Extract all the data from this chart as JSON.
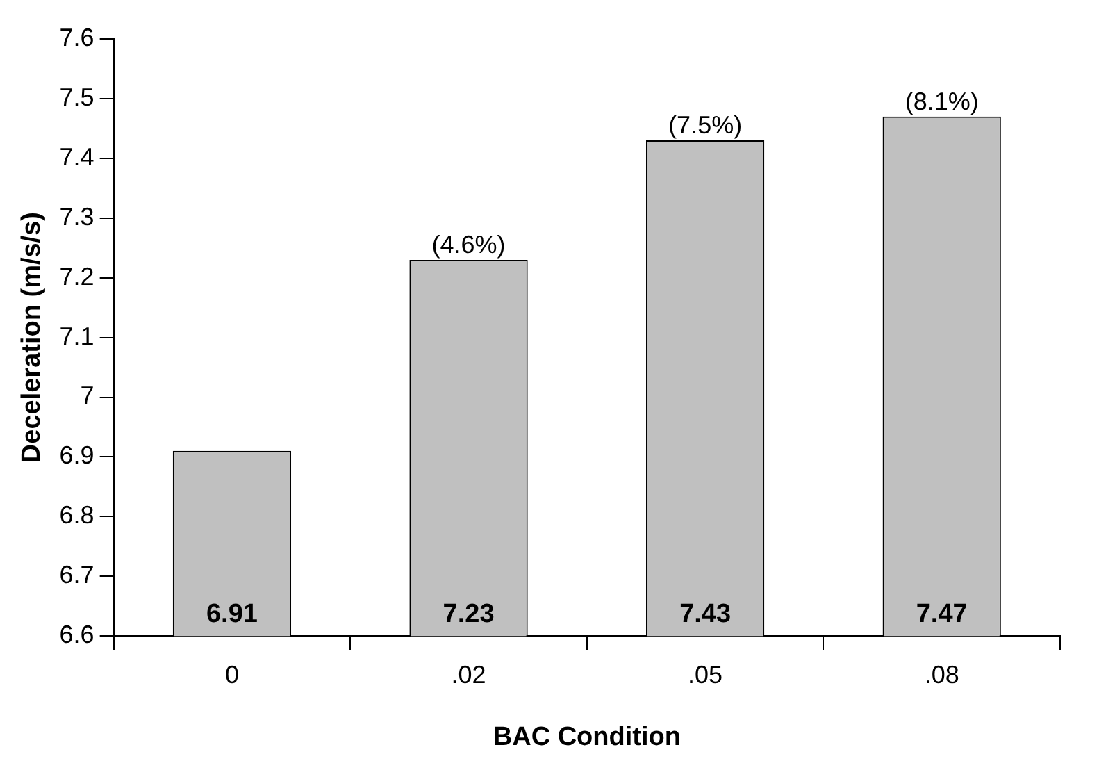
{
  "chart_data": {
    "type": "bar",
    "xlabel": "BAC Condition",
    "ylabel": "Deceleration (m/s/s)",
    "categories": [
      "0",
      ".02",
      ".05",
      ".08"
    ],
    "values": [
      6.91,
      7.23,
      7.43,
      7.47
    ],
    "color": "#c0c0c0",
    "ylim": [
      6.6,
      7.6
    ],
    "yticks": [
      6.6,
      6.7,
      6.8,
      6.9,
      7,
      7.1,
      7.2,
      7.3,
      7.4,
      7.5,
      7.6
    ],
    "data_labels": true,
    "grid": false,
    "legend": false,
    "annotations": [
      {
        "text": "(4.6%)",
        "x": ".02",
        "y": 7.23
      },
      {
        "text": "(7.5%)",
        "x": ".05",
        "y": 7.43
      },
      {
        "text": "(8.1%)",
        "x": ".08",
        "y": 7.47
      }
    ]
  }
}
